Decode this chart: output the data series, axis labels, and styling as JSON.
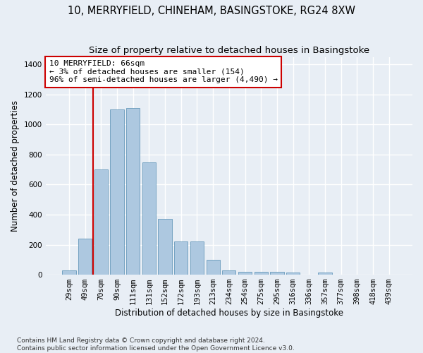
{
  "title": "10, MERRYFIELD, CHINEHAM, BASINGSTOKE, RG24 8XW",
  "subtitle": "Size of property relative to detached houses in Basingstoke",
  "xlabel": "Distribution of detached houses by size in Basingstoke",
  "ylabel": "Number of detached properties",
  "categories": [
    "29sqm",
    "49sqm",
    "70sqm",
    "90sqm",
    "111sqm",
    "131sqm",
    "152sqm",
    "172sqm",
    "193sqm",
    "213sqm",
    "234sqm",
    "254sqm",
    "275sqm",
    "295sqm",
    "316sqm",
    "336sqm",
    "357sqm",
    "377sqm",
    "398sqm",
    "418sqm",
    "439sqm"
  ],
  "values": [
    30,
    240,
    700,
    1100,
    1110,
    750,
    370,
    220,
    220,
    100,
    30,
    20,
    20,
    20,
    15,
    0,
    15,
    0,
    0,
    0,
    0
  ],
  "bar_color": "#adc8e0",
  "bar_edge_color": "#6699bb",
  "red_line_x": 1.5,
  "annotation_text": "10 MERRYFIELD: 66sqm\n← 3% of detached houses are smaller (154)\n96% of semi-detached houses are larger (4,490) →",
  "annotation_box_color": "#ffffff",
  "annotation_box_edge": "#cc0000",
  "vline_color": "#cc0000",
  "bg_color": "#e8eef5",
  "plot_bg_color": "#e8eef5",
  "grid_color": "#ffffff",
  "ylim": [
    0,
    1450
  ],
  "yticks": [
    0,
    200,
    400,
    600,
    800,
    1000,
    1200,
    1400
  ],
  "footnote": "Contains HM Land Registry data © Crown copyright and database right 2024.\nContains public sector information licensed under the Open Government Licence v3.0.",
  "title_fontsize": 10.5,
  "subtitle_fontsize": 9.5,
  "xlabel_fontsize": 8.5,
  "ylabel_fontsize": 8.5,
  "tick_fontsize": 7.5,
  "annot_fontsize": 8,
  "footnote_fontsize": 6.5
}
